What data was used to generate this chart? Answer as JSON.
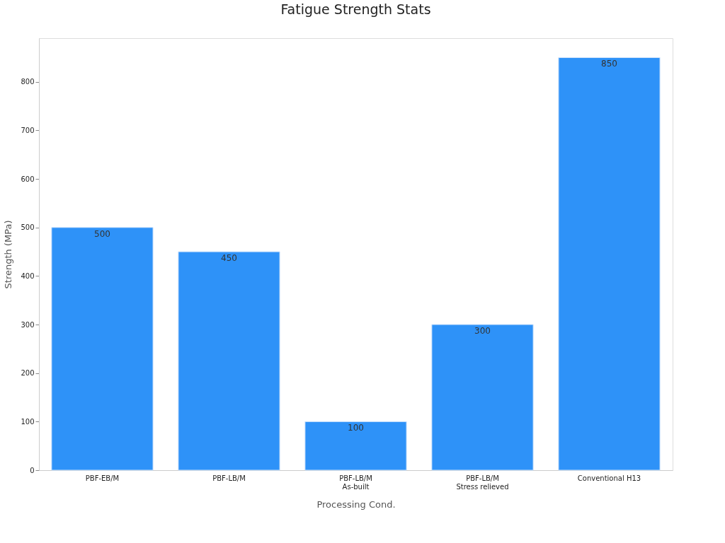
{
  "chart_data": {
    "type": "bar",
    "title": "Fatigue Strength Stats",
    "xlabel": "Processing Cond.",
    "ylabel": "Strength (MPa)",
    "categories": [
      "PBF-EB/M",
      "PBF-LB/M",
      "PBF-LB/M\nAs-built",
      "PBF-LB/M\nStress relieved",
      "Conventional H13"
    ],
    "values": [
      500,
      450,
      100,
      300,
      850
    ],
    "color": "#2e92f8",
    "ylim": [
      0,
      890
    ],
    "yticks": [
      0,
      100,
      200,
      300,
      400,
      500,
      600,
      700,
      800
    ],
    "grid": false,
    "data_labels": true
  }
}
